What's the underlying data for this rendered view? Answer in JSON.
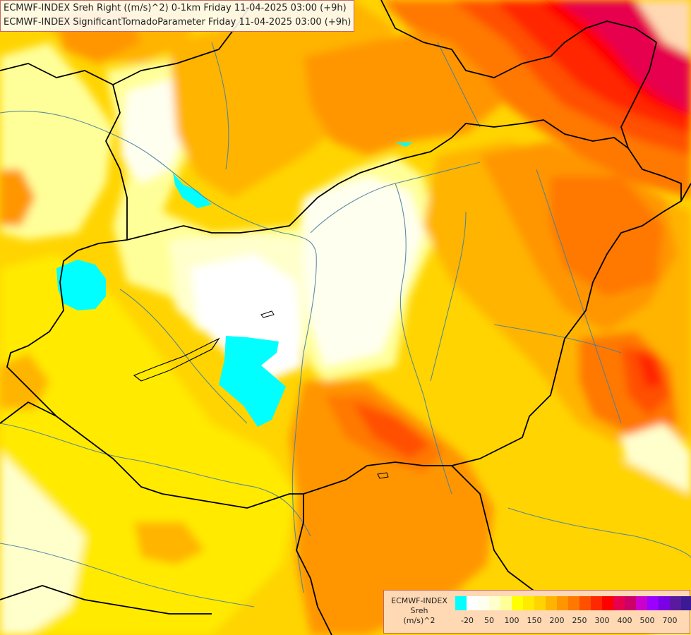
{
  "header": {
    "title_line1": "ECMWF-INDEX Sreh Right ((m/s)^2) 0-1km Friday 11-04-2025 03:00 (+9h)",
    "title_line2": "ECMWF-INDEX SignificantTornadoParameter Friday 11-04-2025 03:00 (+9h)"
  },
  "legend": {
    "line1": "ECMWF-INDEX",
    "line2": "Sreh",
    "line3": "(m/s)^2",
    "colors": [
      "#00ffff",
      "#ffffff",
      "#fffff0",
      "#ffffcc",
      "#ffff99",
      "#ffff00",
      "#ffea00",
      "#ffd400",
      "#ffb400",
      "#ff9600",
      "#ff7800",
      "#ff5000",
      "#ff2800",
      "#ff0000",
      "#e6004e",
      "#cc0066",
      "#cc00cc",
      "#9900ff",
      "#7a00e6",
      "#5a1aa0",
      "#3c1a96",
      "#1a1a78"
    ],
    "ticks": [
      "-20",
      "50",
      "100",
      "150",
      "200",
      "250",
      "300",
      "400",
      "500",
      "700"
    ]
  },
  "map": {
    "background_color": "#ffd400",
    "border_color": "#000000",
    "river_color": "#4a7fa0"
  }
}
